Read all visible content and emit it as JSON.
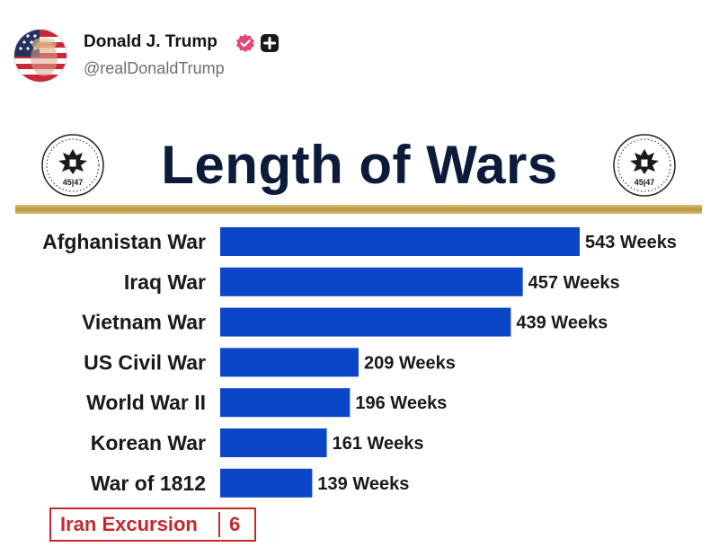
{
  "post": {
    "author_name": "Donald J. Trump",
    "handle": "@realDonaldTrump",
    "avatar_icon": "flag-portrait-avatar",
    "badges": [
      "verified-badge-icon",
      "plus-badge-icon"
    ],
    "colors": {
      "verified": "#e8467a"
    }
  },
  "chart": {
    "title": "Length of Wars",
    "seal_text": "45|47",
    "callout": {
      "label": "Iran Excursion",
      "value": "6"
    },
    "colors": {
      "bar": "#0b46c8",
      "title": "#0c1b3a",
      "callout": "#c5282d",
      "rule": "#c9a94e"
    }
  },
  "chart_data": {
    "type": "bar",
    "orientation": "horizontal",
    "title": "Length of Wars",
    "categories": [
      "Afghanistan War",
      "Iraq War",
      "Vietnam War",
      "US Civil War",
      "World War II",
      "Korean War",
      "War of 1812"
    ],
    "values": [
      543,
      457,
      439,
      209,
      196,
      161,
      139
    ],
    "value_labels": [
      "543 Weeks",
      "457 Weeks",
      "439 Weeks",
      "209 Weeks",
      "196 Weeks",
      "161 Weeks",
      "139 Weeks"
    ],
    "unit": "Weeks",
    "extra_item": {
      "label": "Iran Excursion",
      "value": 6
    },
    "grid": false,
    "legend": "none"
  }
}
